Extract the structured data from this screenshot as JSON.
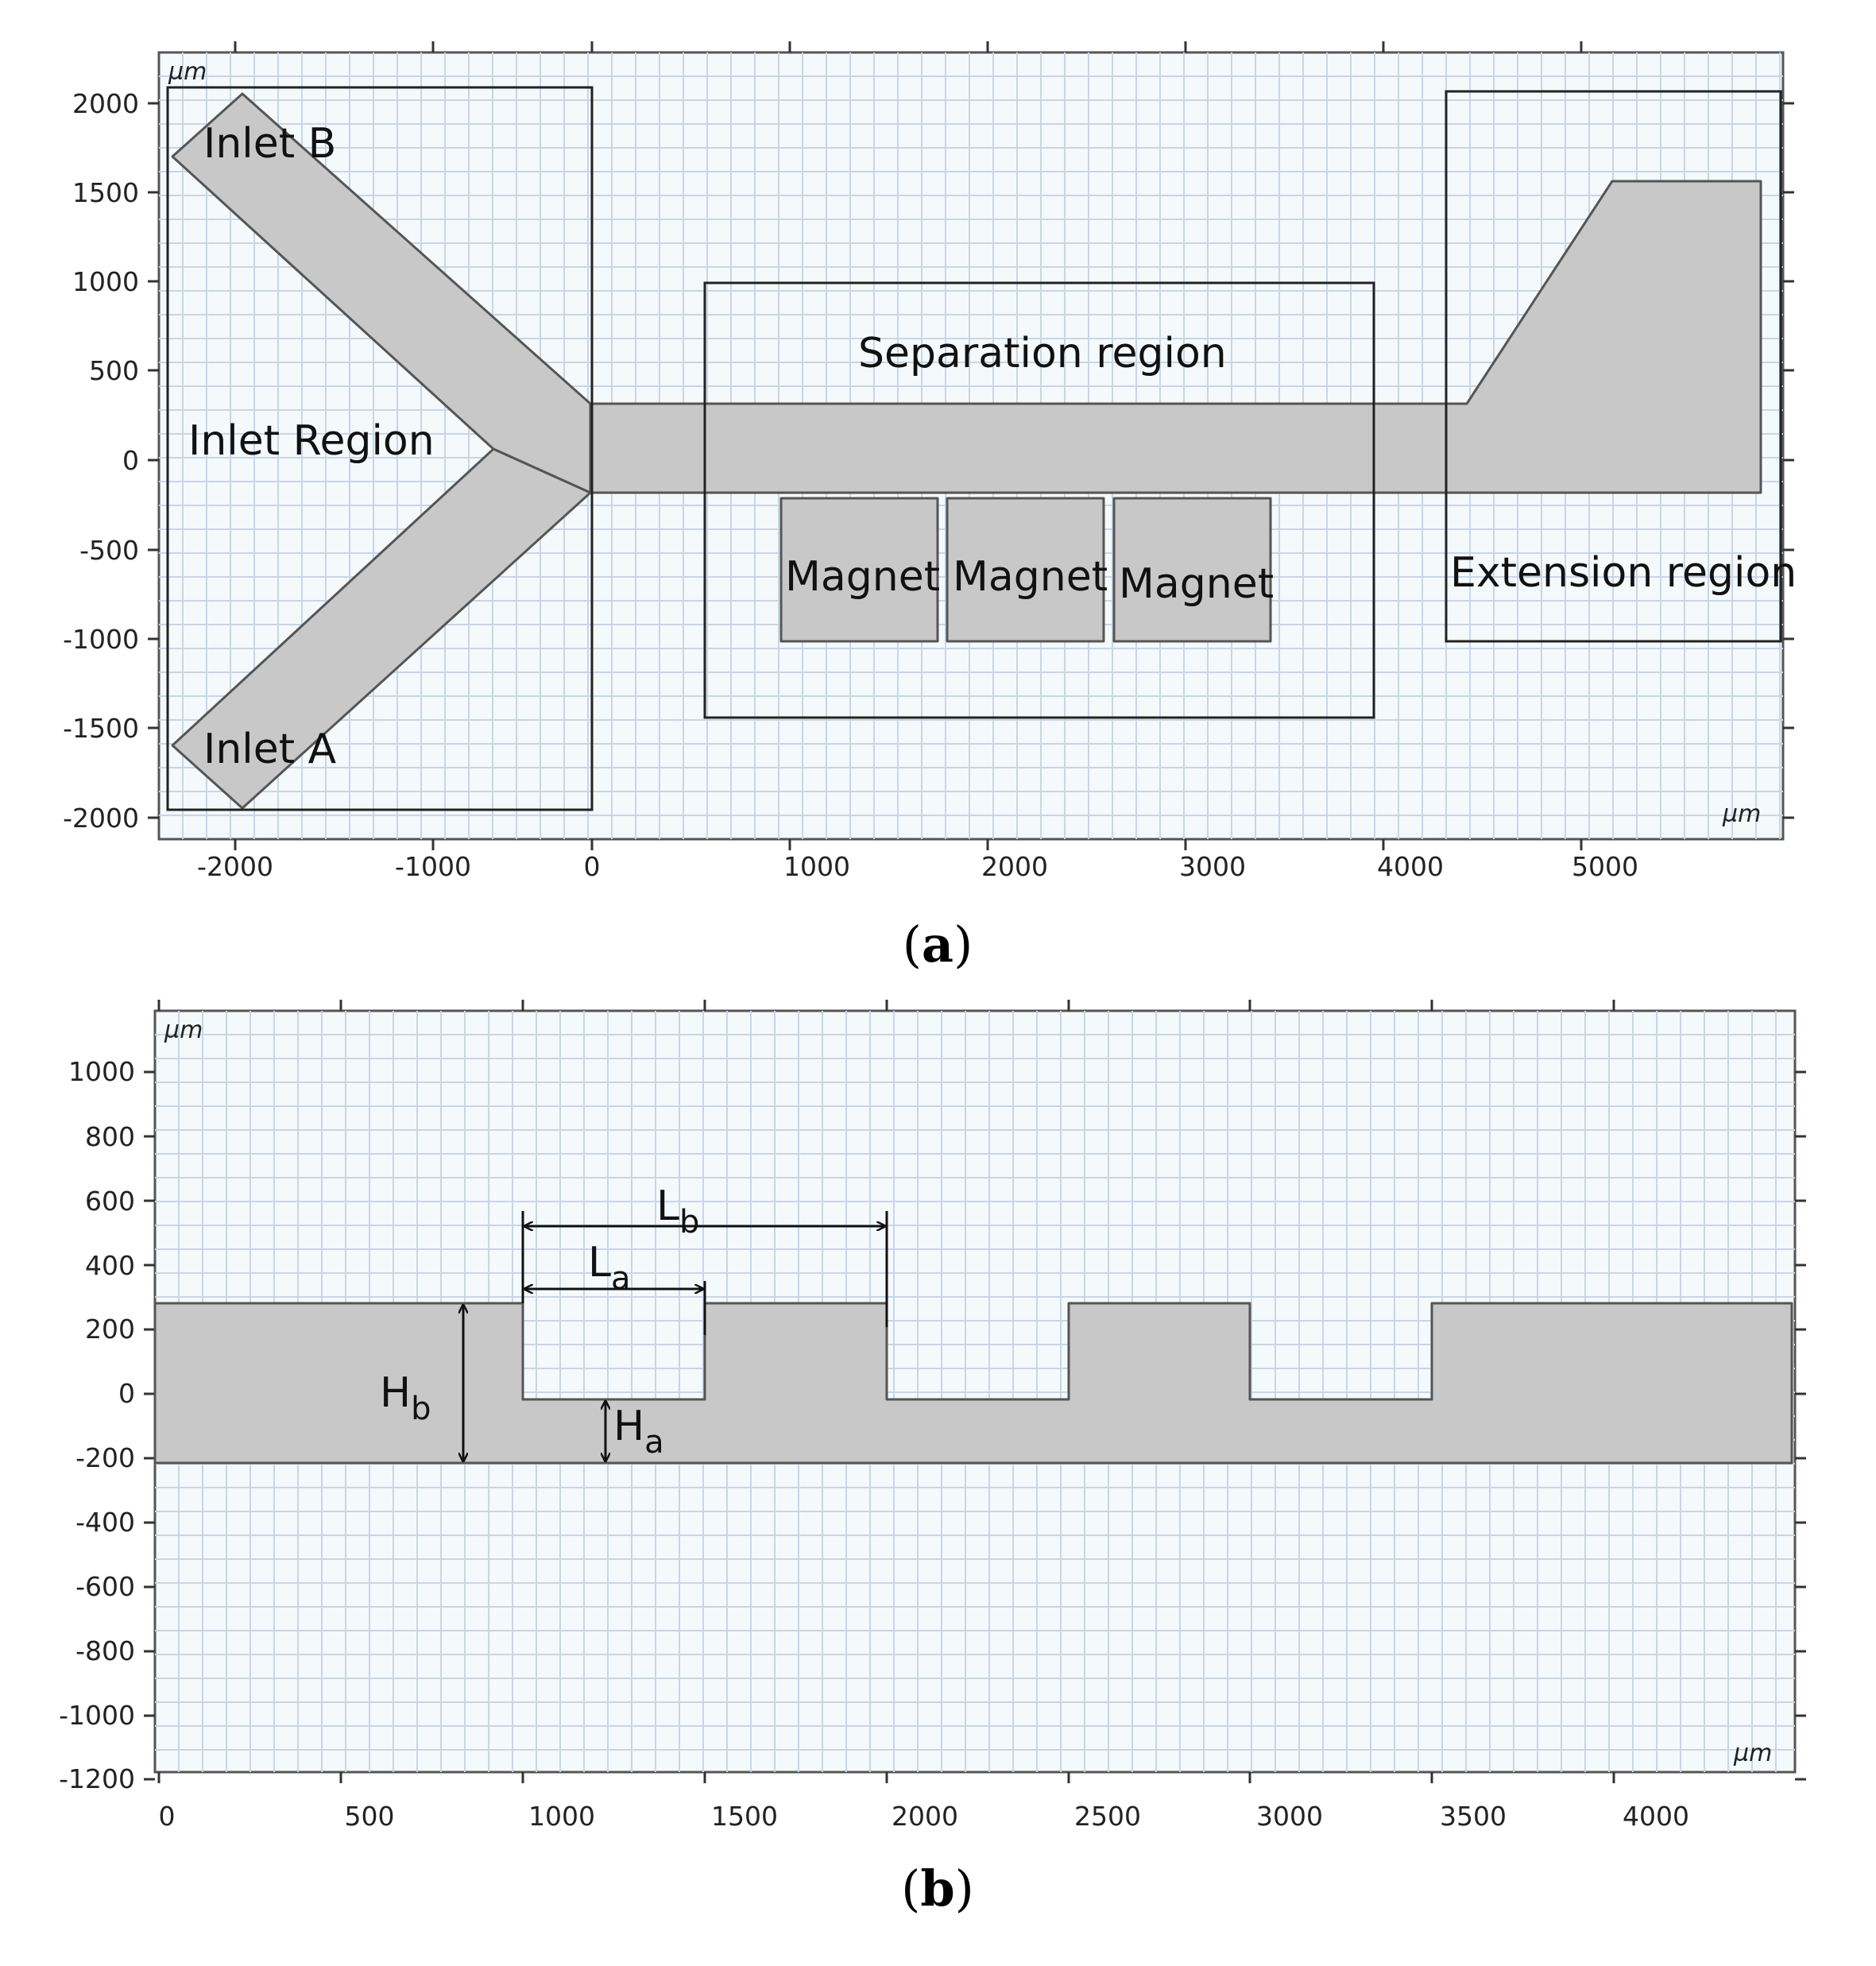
{
  "panel_a": {
    "caption_letter": "a",
    "unit_top": "µm",
    "unit_right": "µm",
    "x_ticks": [
      "-2000",
      "-1000",
      "0",
      "1000",
      "2000",
      "3000",
      "4000",
      "5000"
    ],
    "y_ticks": [
      "2000",
      "1500",
      "1000",
      "500",
      "0",
      "-500",
      "-1000",
      "-1500",
      "-2000"
    ],
    "labels": {
      "inlet_b": "Inlet B",
      "inlet_a": "Inlet A",
      "inlet_region": "Inlet Region",
      "separation_region": "Separation region",
      "magnet_1": "Magnet",
      "magnet_2": "Magnet",
      "magnet_3": "Magnet",
      "extension_region": "Extension region"
    }
  },
  "panel_b": {
    "caption_letter": "b",
    "unit_top": "µm",
    "unit_right": "µm",
    "x_ticks": [
      "0",
      "500",
      "1000",
      "1500",
      "2000",
      "2500",
      "3000",
      "3500",
      "4000"
    ],
    "y_ticks": [
      "1000",
      "800",
      "600",
      "400",
      "200",
      "0",
      "-200",
      "-400",
      "-600",
      "-800",
      "-1000",
      "-1200"
    ],
    "dims": {
      "lb_main": "L",
      "lb_sub": "b",
      "la_main": "L",
      "la_sub": "a",
      "hb_main": "H",
      "hb_sub": "b",
      "ha_main": "H",
      "ha_sub": "a"
    }
  },
  "colors": {
    "channel_fill": "#c8c8c8",
    "plot_background": "#f4f9fc",
    "grid": "#c8d6e6"
  }
}
